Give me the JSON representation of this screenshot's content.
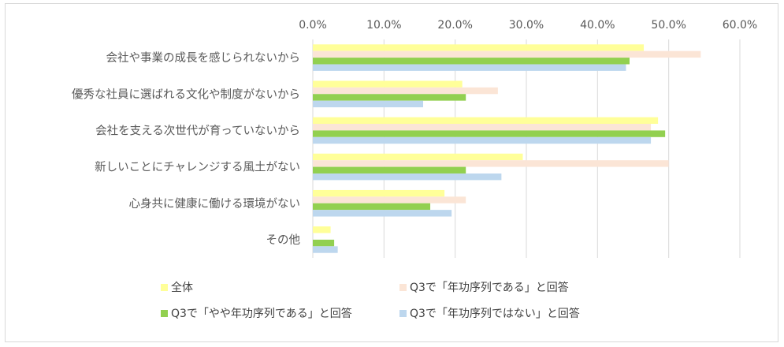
{
  "chart_data": {
    "type": "bar",
    "orientation": "horizontal",
    "categories": [
      "会社や事業の成長を感じられないから",
      "優秀な社員に選ばれる文化や制度がないから",
      "会社を支える次世代が育っていないから",
      "新しいことにチャレンジする風土がない",
      "心身共に健康に働ける環境がない",
      "その他"
    ],
    "series": [
      {
        "name": "全体",
        "color": "#ffff99",
        "values": [
          46.5,
          21.0,
          48.5,
          29.5,
          18.5,
          2.5
        ]
      },
      {
        "name": "Q3で「年功序列である」と回答",
        "color": "#fbe5d6",
        "values": [
          54.5,
          26.0,
          47.5,
          50.0,
          21.5,
          0
        ]
      },
      {
        "name": "Q3で「やや年功序列である」と回答",
        "color": "#92d050",
        "values": [
          44.5,
          21.5,
          49.5,
          21.5,
          16.5,
          3.0
        ]
      },
      {
        "name": "Q3で「年功序列ではない」と回答",
        "color": "#bdd7ee",
        "values": [
          44.0,
          15.5,
          47.5,
          26.5,
          19.5,
          3.5
        ]
      }
    ],
    "xlim": [
      0,
      60
    ],
    "xticks": [
      "0.0%",
      "10.0%",
      "20.0%",
      "30.0%",
      "40.0%",
      "50.0%",
      "60.0%"
    ],
    "grid": true,
    "legend_position": "bottom",
    "title": "",
    "xlabel": "",
    "ylabel": ""
  }
}
